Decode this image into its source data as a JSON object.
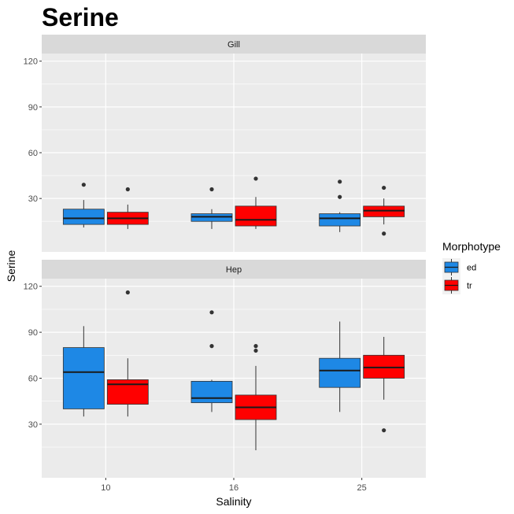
{
  "chart_data": {
    "type": "boxplot",
    "title": "Serine",
    "xlabel": "Salinity",
    "ylabel": "Serine",
    "categories": [
      "10",
      "16",
      "25"
    ],
    "y_ticks": [
      30,
      60,
      90,
      120
    ],
    "ylim": [
      -5,
      125
    ],
    "grid": true,
    "legend": {
      "title": "Morphotype",
      "position": "right",
      "items": [
        {
          "label": "ed",
          "color": "#1e88e5"
        },
        {
          "label": "tr",
          "color": "#ff0000"
        }
      ]
    },
    "panels": [
      {
        "name": "Gill",
        "boxes": [
          {
            "category": "10",
            "group": "ed",
            "min": 11,
            "q1": 13,
            "median": 17,
            "q3": 23,
            "max": 29,
            "outliers": [
              39
            ]
          },
          {
            "category": "10",
            "group": "tr",
            "min": 10,
            "q1": 13,
            "median": 17,
            "q3": 21,
            "max": 26,
            "outliers": [
              36
            ]
          },
          {
            "category": "16",
            "group": "ed",
            "min": 10,
            "q1": 15,
            "median": 18,
            "q3": 20,
            "max": 23,
            "outliers": [
              36
            ]
          },
          {
            "category": "16",
            "group": "tr",
            "min": 10,
            "q1": 12,
            "median": 16,
            "q3": 25,
            "max": 31,
            "outliers": [
              43
            ]
          },
          {
            "category": "25",
            "group": "ed",
            "min": 8,
            "q1": 12,
            "median": 17,
            "q3": 20,
            "max": 21,
            "outliers": [
              31,
              41
            ]
          },
          {
            "category": "25",
            "group": "tr",
            "min": 13,
            "q1": 18,
            "median": 22,
            "q3": 25,
            "max": 30,
            "outliers": [
              37,
              7
            ]
          }
        ]
      },
      {
        "name": "Hep",
        "boxes": [
          {
            "category": "10",
            "group": "ed",
            "min": 35,
            "q1": 40,
            "median": 64,
            "q3": 80,
            "max": 94,
            "outliers": []
          },
          {
            "category": "10",
            "group": "tr",
            "min": 35,
            "q1": 43,
            "median": 56,
            "q3": 59,
            "max": 73,
            "outliers": [
              116
            ]
          },
          {
            "category": "16",
            "group": "ed",
            "min": 38,
            "q1": 44,
            "median": 47,
            "q3": 58,
            "max": 59,
            "outliers": [
              81,
              103
            ]
          },
          {
            "category": "16",
            "group": "tr",
            "min": 13,
            "q1": 33,
            "median": 41,
            "q3": 49,
            "max": 68,
            "outliers": [
              78,
              81
            ]
          },
          {
            "category": "25",
            "group": "ed",
            "min": 38,
            "q1": 54,
            "median": 65,
            "q3": 73,
            "max": 97,
            "outliers": []
          },
          {
            "category": "25",
            "group": "tr",
            "min": 46,
            "q1": 60,
            "median": 67,
            "q3": 75,
            "max": 87,
            "outliers": [
              26
            ]
          }
        ]
      }
    ]
  }
}
